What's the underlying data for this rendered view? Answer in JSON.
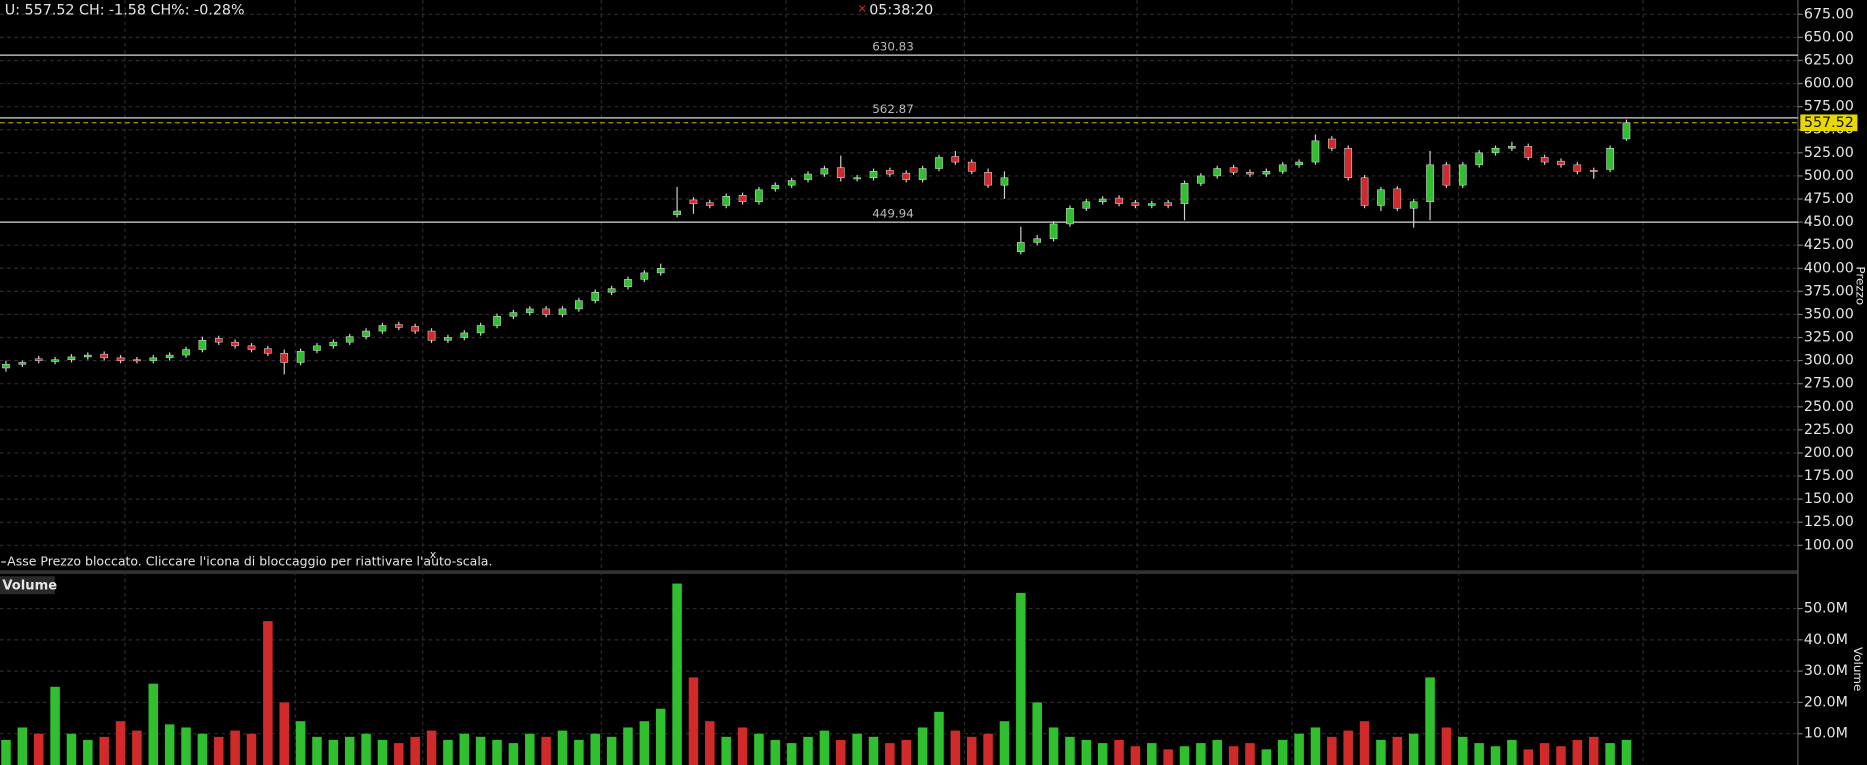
{
  "header": {
    "quote": "U: 557.52 CH: -1.58 CH%: -0.28%",
    "time": "05:38:20"
  },
  "notice": {
    "text": "Asse Prezzo bloccato. Cliccare l'icona di bloccaggio per riattivare l'auto-scala.",
    "dismiss": "x"
  },
  "chart_data": [
    {
      "type": "candlestick",
      "y_label": "Prezzo",
      "ylim": [
        74.2,
        690.5
      ],
      "yticks": [
        {
          "value": 100,
          "label": "100.00"
        },
        {
          "value": 125,
          "label": "125.00"
        },
        {
          "value": 150,
          "label": "150.00"
        },
        {
          "value": 175,
          "label": "175.00"
        },
        {
          "value": 200,
          "label": "200.00"
        },
        {
          "value": 225,
          "label": "225.00"
        },
        {
          "value": 250,
          "label": "250.00"
        },
        {
          "value": 275,
          "label": "275.00"
        },
        {
          "value": 300,
          "label": "300.00"
        },
        {
          "value": 325,
          "label": "325.00"
        },
        {
          "value": 350,
          "label": "350.00"
        },
        {
          "value": 375,
          "label": "375.00"
        },
        {
          "value": 400,
          "label": "400.00"
        },
        {
          "value": 425,
          "label": "425.00"
        },
        {
          "value": 450,
          "label": "450.00"
        },
        {
          "value": 475,
          "label": "475.00"
        },
        {
          "value": 500,
          "label": "500.00"
        },
        {
          "value": 525,
          "label": "525.00"
        },
        {
          "value": 550,
          "label": "550.00"
        },
        {
          "value": 575,
          "label": "575.00"
        },
        {
          "value": 600,
          "label": "600.00"
        },
        {
          "value": 625,
          "label": "625.00"
        },
        {
          "value": 650,
          "label": "650.00"
        },
        {
          "value": 675,
          "label": "675.00"
        }
      ],
      "grid": true,
      "up_color": "#2fbf2f",
      "down_color": "#d02a2a",
      "wick_color": "#cfcfcf",
      "price_lines": [
        {
          "value": 630.83
        },
        {
          "value": 562.87
        },
        {
          "value": 449.94
        }
      ],
      "last_price": {
        "value": 557.52,
        "color": "#e8d800"
      },
      "open": [
        292,
        296,
        302,
        299,
        301,
        304,
        307,
        303,
        301,
        300,
        303,
        306,
        312,
        324,
        320,
        316,
        313,
        308,
        298,
        311,
        316,
        320,
        326,
        332,
        339,
        337,
        332,
        322,
        325,
        330,
        338,
        348,
        352,
        356,
        350,
        356,
        365,
        374,
        380,
        388,
        395,
        458,
        474,
        471,
        468,
        479,
        472,
        486,
        490,
        496,
        502,
        509,
        497,
        498,
        506,
        503,
        496,
        508,
        521,
        515,
        504,
        490,
        418,
        428,
        432,
        448,
        465,
        472,
        476,
        471,
        468,
        471,
        470,
        492,
        500,
        509,
        504,
        502,
        505,
        512,
        515,
        540,
        530,
        498,
        468,
        486,
        465,
        472,
        512,
        490,
        512,
        525,
        530,
        532,
        520,
        516,
        512,
        506,
        507,
        540
      ],
      "high": [
        300,
        300,
        305,
        304,
        307,
        309,
        310,
        306,
        304,
        306,
        309,
        315,
        326,
        327,
        323,
        319,
        316,
        312,
        313,
        319,
        323,
        329,
        335,
        341,
        342,
        340,
        335,
        328,
        333,
        341,
        351,
        355,
        359,
        359,
        359,
        368,
        377,
        381,
        391,
        398,
        405,
        488,
        477,
        474,
        481,
        482,
        488,
        493,
        498,
        505,
        511,
        522,
        501,
        508,
        509,
        506,
        511,
        523,
        527,
        518,
        508,
        505,
        445,
        436,
        451,
        468,
        475,
        478,
        479,
        474,
        473,
        474,
        495,
        503,
        511,
        512,
        507,
        508,
        515,
        518,
        545,
        543,
        533,
        501,
        488,
        489,
        475,
        527,
        515,
        515,
        528,
        533,
        537,
        535,
        523,
        519,
        515,
        509,
        533,
        561
      ],
      "low": [
        288,
        293,
        297,
        296,
        298,
        301,
        300,
        297,
        297,
        297,
        300,
        303,
        309,
        317,
        313,
        309,
        305,
        285,
        295,
        308,
        313,
        317,
        323,
        329,
        333,
        329,
        319,
        319,
        322,
        327,
        335,
        345,
        349,
        347,
        347,
        353,
        362,
        371,
        377,
        385,
        392,
        455,
        459,
        465,
        465,
        469,
        469,
        483,
        487,
        493,
        499,
        494,
        494,
        495,
        499,
        493,
        493,
        505,
        512,
        502,
        487,
        475,
        415,
        425,
        429,
        445,
        462,
        469,
        467,
        465,
        465,
        465,
        452,
        489,
        497,
        501,
        499,
        499,
        502,
        509,
        512,
        527,
        495,
        465,
        462,
        462,
        444,
        452,
        487,
        487,
        509,
        522,
        527,
        517,
        512,
        509,
        502,
        497,
        504,
        538
      ],
      "close": [
        296,
        298,
        300,
        301,
        304,
        306,
        303,
        300,
        300,
        303,
        306,
        312,
        322,
        320,
        316,
        312,
        308,
        298,
        310,
        316,
        320,
        326,
        332,
        338,
        336,
        332,
        322,
        325,
        330,
        338,
        348,
        352,
        356,
        350,
        356,
        365,
        374,
        378,
        388,
        395,
        400,
        462,
        470,
        468,
        478,
        472,
        485,
        490,
        495,
        502,
        508,
        498,
        498,
        505,
        502,
        496,
        508,
        520,
        515,
        505,
        490,
        498,
        428,
        432,
        448,
        465,
        472,
        475,
        470,
        468,
        470,
        468,
        492,
        500,
        508,
        504,
        502,
        505,
        512,
        515,
        538,
        530,
        498,
        468,
        485,
        465,
        472,
        512,
        490,
        512,
        525,
        530,
        532,
        520,
        515,
        512,
        505,
        505,
        530,
        557.52
      ]
    },
    {
      "type": "bar",
      "title": "Volume",
      "y_label": "Volume",
      "ylim": [
        0,
        60.7
      ],
      "yticks": [
        {
          "value": 10,
          "label": "10.0M"
        },
        {
          "value": 20,
          "label": "20.0M"
        },
        {
          "value": 30,
          "label": "30.0M"
        },
        {
          "value": 40,
          "label": "40.0M"
        },
        {
          "value": 50,
          "label": "50.0M"
        }
      ],
      "grid": true,
      "values": [
        8,
        12,
        10,
        25,
        10,
        8,
        9,
        14,
        11,
        26,
        13,
        12,
        10,
        9,
        11,
        10,
        46,
        20,
        14,
        9,
        8,
        9,
        10,
        8,
        7,
        9,
        11,
        8,
        10,
        9,
        8,
        7,
        10,
        9,
        11,
        8,
        10,
        9,
        12,
        14,
        18,
        58,
        28,
        14,
        9,
        12,
        10,
        8,
        7,
        9,
        11,
        8,
        10,
        9,
        7,
        8,
        12,
        17,
        11,
        9,
        10,
        14,
        55,
        20,
        12,
        9,
        8,
        7,
        8,
        6,
        7,
        5,
        6,
        7,
        8,
        6,
        7,
        5,
        8,
        10,
        12,
        9,
        11,
        14,
        8,
        9,
        10,
        28,
        12,
        9,
        7,
        6,
        8,
        5,
        7,
        6,
        8,
        9,
        7,
        8
      ]
    }
  ]
}
